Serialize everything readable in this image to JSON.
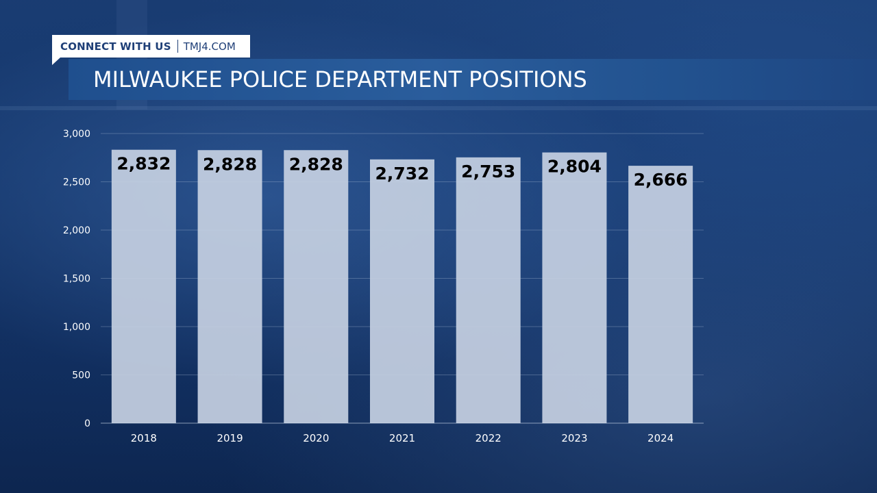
{
  "header": {
    "connect_label": "CONNECT WITH US",
    "url": "TMJ4.COM",
    "title": "MILWAUKEE POLICE DEPARTMENT POSITIONS"
  },
  "chart_data": {
    "type": "bar",
    "title": "MILWAUKEE POLICE DEPARTMENT POSITIONS",
    "categories": [
      "2018",
      "2019",
      "2020",
      "2021",
      "2022",
      "2023",
      "2024"
    ],
    "values": [
      2832,
      2828,
      2828,
      2732,
      2753,
      2804,
      2666
    ],
    "value_labels": [
      "2,832",
      "2,828",
      "2,828",
      "2,732",
      "2,753",
      "2,804",
      "2,666"
    ],
    "yticks": [
      0,
      500,
      1000,
      1500,
      2000,
      2500,
      3000
    ],
    "ytick_labels": [
      "0",
      "500",
      "1,000",
      "1,500",
      "2,000",
      "2,500",
      "3,000"
    ],
    "ylim": [
      0,
      3000
    ],
    "xlabel": "",
    "ylabel": "",
    "grid": true,
    "legend": "none",
    "colors": {
      "bar": "#c6d0e2",
      "data_label": "#000000",
      "axis_text": "#ffffff"
    }
  }
}
